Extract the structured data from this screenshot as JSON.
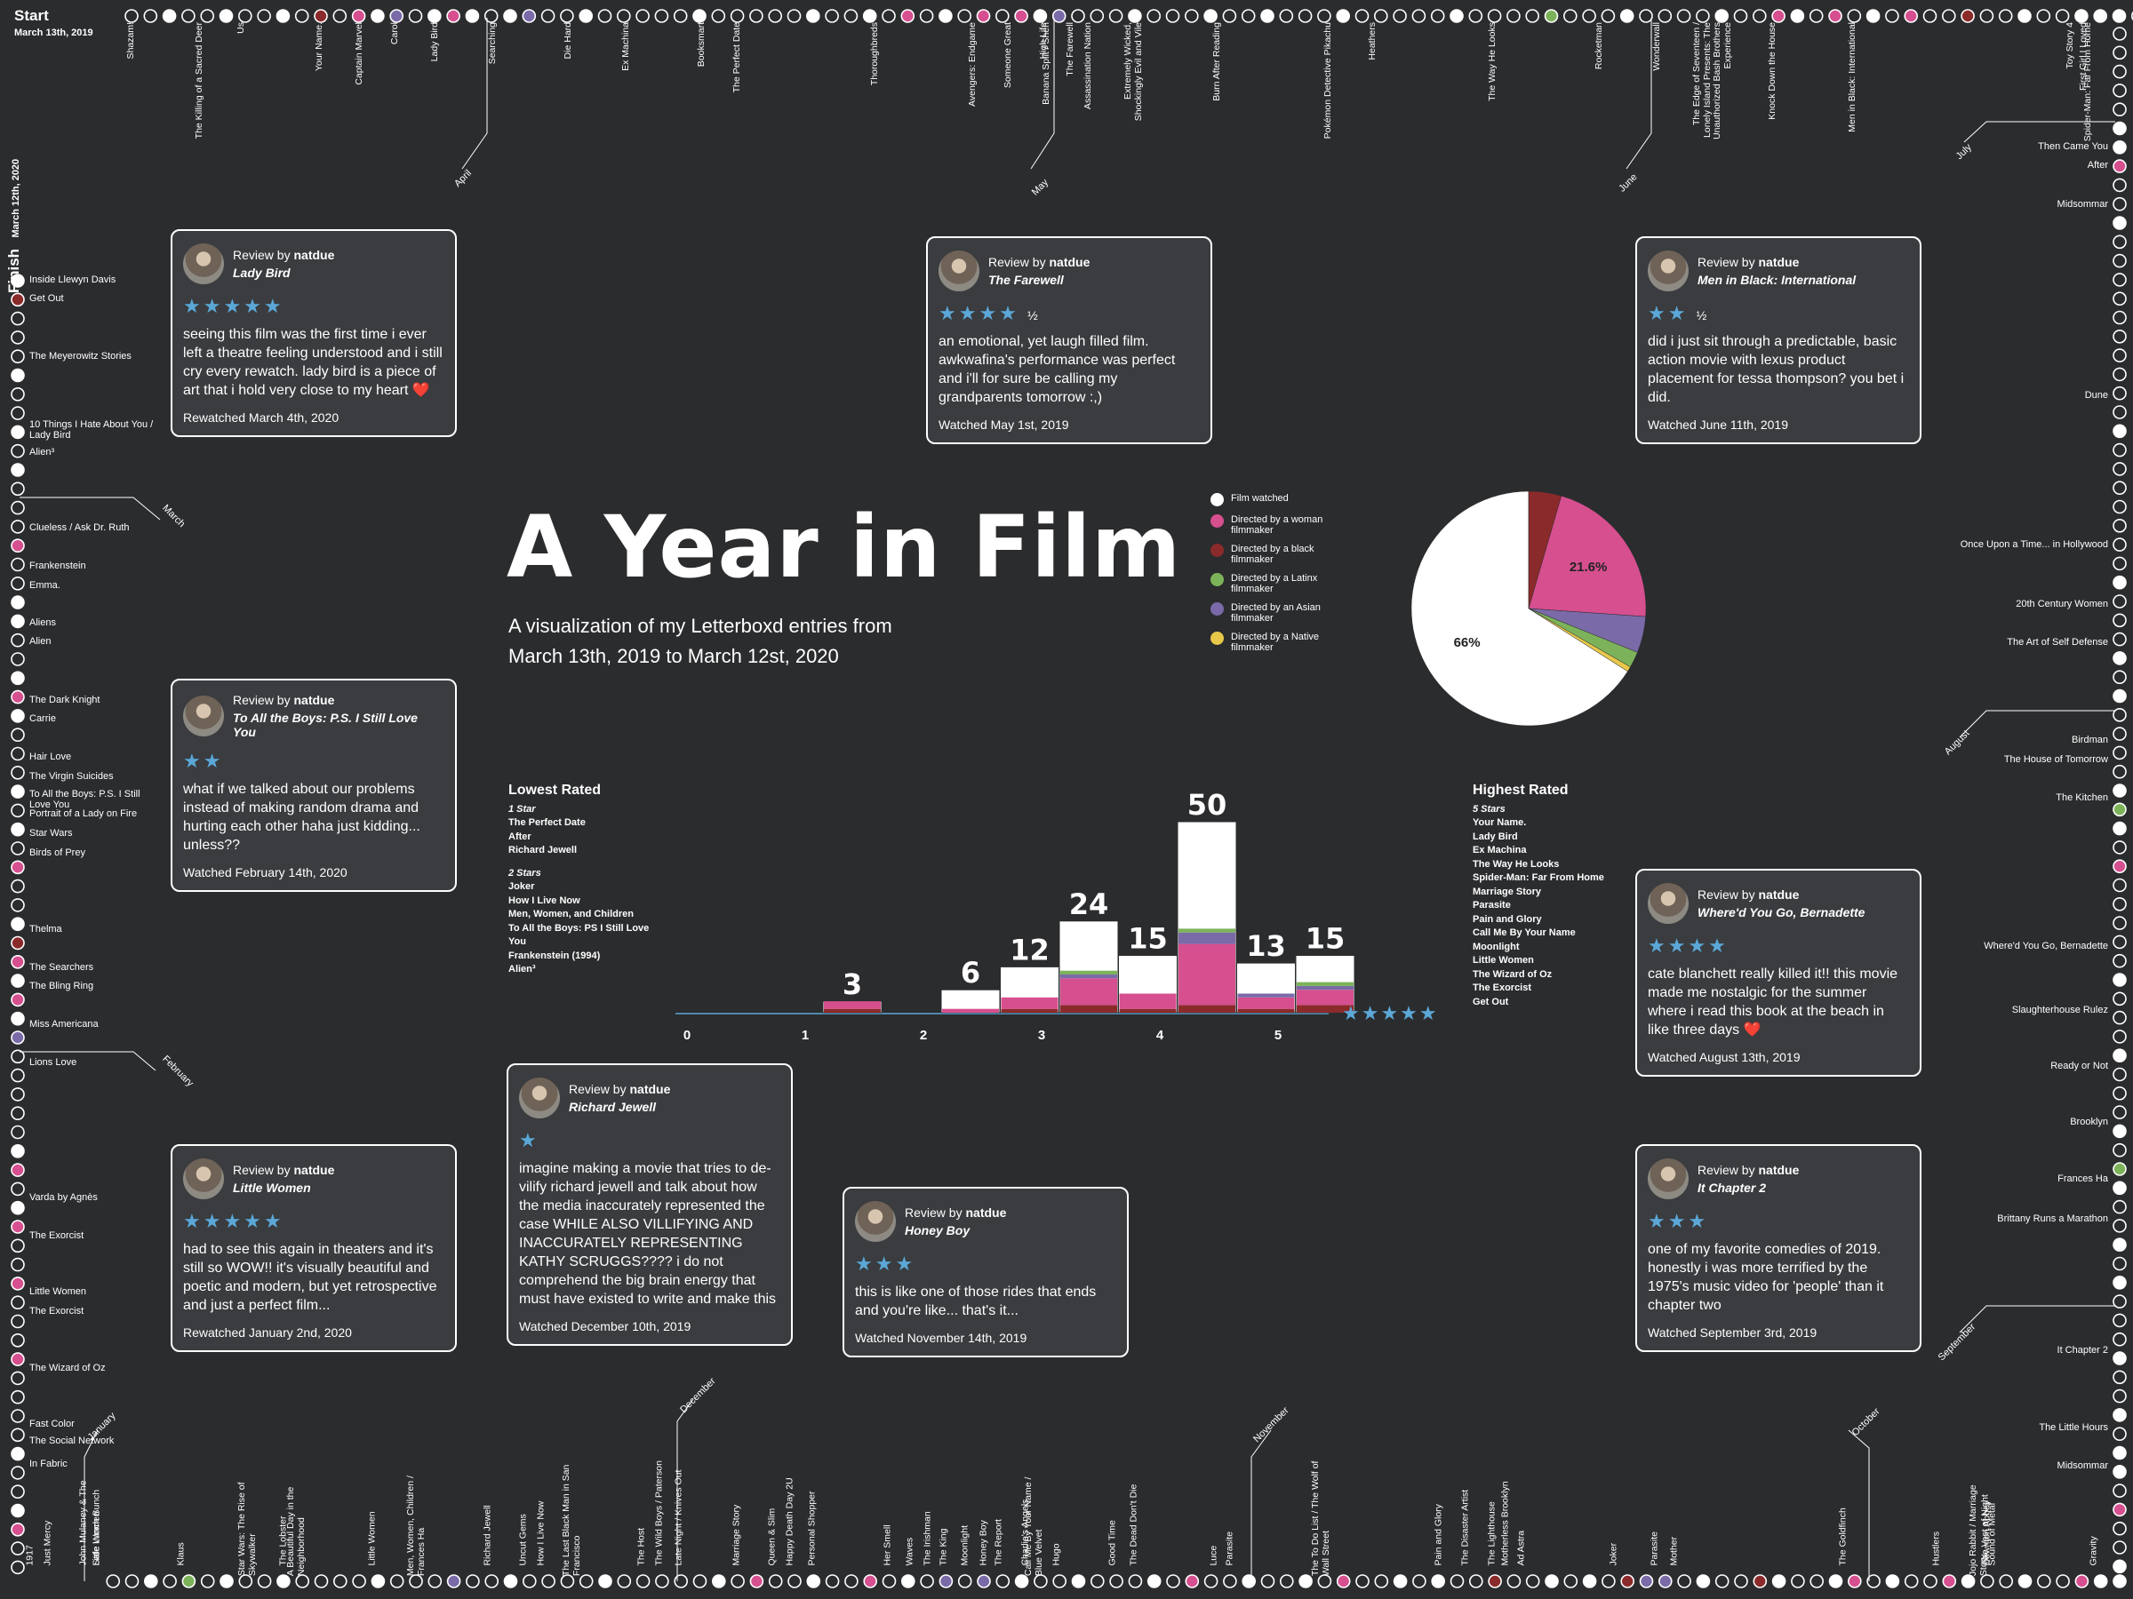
{
  "header": {
    "start_label": "Start",
    "start_date": "March 13th, 2019",
    "finish_label": "Finish",
    "finish_date": "March 12th, 2020"
  },
  "title": "A Year in Film",
  "subtitle_line1": "A visualization of my Letterboxd entries from",
  "subtitle_line2": "March 13th, 2019 to March 12st, 2020",
  "colors": {
    "watched": "#ffffff",
    "woman": "#d64f8f",
    "black": "#8b2a2a",
    "latinx": "#7cb35a",
    "asian": "#7b6aa8",
    "native": "#e8c84a",
    "background": "#2b2c2e",
    "star": "#5ba8d8"
  },
  "legend": [
    {
      "label": "Film watched",
      "color": "#ffffff"
    },
    {
      "label": "Directed by a woman filmmaker",
      "color": "#d64f8f"
    },
    {
      "label": "Directed by a black filmmaker",
      "color": "#8b2a2a"
    },
    {
      "label": "Directed by a Latinx filmmaker",
      "color": "#7cb35a"
    },
    {
      "label": "Directed by an Asian filmmaker",
      "color": "#7b6aa8"
    },
    {
      "label": "Directed by a Native filmmaker",
      "color": "#e8c84a"
    }
  ],
  "lowest_rated": {
    "heading": "Lowest Rated",
    "groups": [
      {
        "label": "1 Star",
        "films": [
          "The Perfect Date",
          "After",
          "Richard Jewell"
        ]
      },
      {
        "label": "2 Stars",
        "films": [
          "Joker",
          "How I Live Now",
          "Men, Women, and Children",
          "To All the Boys: PS I Still Love You",
          "Frankenstein (1994)",
          "Alien³"
        ]
      }
    ]
  },
  "highest_rated": {
    "heading": "Highest Rated",
    "groups": [
      {
        "label": "5 Stars",
        "films": [
          "Your Name.",
          "Lady Bird",
          "Ex Machina",
          "The Way He Looks",
          "Spider-Man: Far From Home",
          "Marriage Story",
          "Parasite",
          "Pain and Glory",
          "Call Me By Your Name",
          "Moonlight",
          "Little Women",
          "The Wizard of Oz",
          "The Exorcist",
          "Get Out"
        ]
      }
    ]
  },
  "reviews": [
    {
      "by": "Review by",
      "user": "natdue",
      "film": "Lady Bird",
      "stars": "★★★★★",
      "half": "",
      "text": "seeing this film was the first time i ever left a theatre feeling understood and i still cry every rewatch. lady bird is a piece of art that i hold very close to my heart ❤️",
      "date": "Rewatched March 4th, 2020"
    },
    {
      "by": "Review by",
      "user": "natdue",
      "film": "The Farewell",
      "stars": "★★★★",
      "half": "½",
      "text": "an emotional, yet laugh filled film. awkwafina's performance was perfect and i'll for sure be calling my grandparents tomorrow :,)",
      "date": "Watched May 1st, 2019"
    },
    {
      "by": "Review by",
      "user": "natdue",
      "film": "Men in Black: International",
      "stars": "★★",
      "half": "½",
      "text": "did i just sit through a predictable, basic action movie with lexus product placement for tessa thompson? you bet i did.",
      "date": "Watched June 11th, 2019"
    },
    {
      "by": "Review by",
      "user": "natdue",
      "film": "To All the Boys: P.S. I Still Love You",
      "stars": "★★",
      "half": "",
      "text": "what if we talked about our problems instead of making random drama and hurting each other haha just kidding... unless??",
      "date": "Watched February 14th, 2020"
    },
    {
      "by": "Review by",
      "user": "natdue",
      "film": "Where'd You Go, Bernadette",
      "stars": "★★★★",
      "half": "",
      "text": "cate blanchett really killed it!! this movie made me nostalgic for the summer where i read this book at the beach in like three days ❤️",
      "date": "Watched August 13th, 2019"
    },
    {
      "by": "Review by",
      "user": "natdue",
      "film": "Richard Jewell",
      "stars": "★",
      "half": "",
      "text": "imagine making a movie that tries to de-vilify richard jewell and talk about how the media inaccurately represented the case WHILE ALSO VILLIFYING AND INACCURATELY REPRESENTING KATHY SCRUGGS???? i do not comprehend the big brain energy that must have existed to write and make this",
      "date": "Watched December 10th, 2019"
    },
    {
      "by": "Review by",
      "user": "natdue",
      "film": "Little Women",
      "stars": "★★★★★",
      "half": "",
      "text": "had to see this again in theaters and it's still so WOW!! it's visually beautiful and poetic and modern, but yet retrospective and just a perfect film...",
      "date": "Rewatched January 2nd, 2020"
    },
    {
      "by": "Review by",
      "user": "natdue",
      "film": "Honey Boy",
      "stars": "★★★",
      "half": "",
      "text": "this is like one of those rides that ends and you're like... that's it...",
      "date": "Watched November 14th, 2019"
    },
    {
      "by": "Review by",
      "user": "natdue",
      "film": "It Chapter 2",
      "stars": "★★★",
      "half": "",
      "text": "one of my favorite comedies of 2019. honestly i was more terrified by the 1975's music video for 'people' than it chapter two",
      "date": "Watched September 3rd, 2019"
    }
  ],
  "chart_data": [
    {
      "type": "pie",
      "slices": [
        {
          "name": "Film watched",
          "value": 66,
          "label": "66%"
        },
        {
          "name": "Directed by a black filmmaker",
          "value": 4.5,
          "label": ""
        },
        {
          "name": "Directed by a woman filmmaker",
          "value": 21.6,
          "label": "21.6%"
        },
        {
          "name": "Directed by an Asian filmmaker",
          "value": 5.0,
          "label": ""
        },
        {
          "name": "Directed by a Latinx filmmaker",
          "value": 2.2,
          "label": ""
        },
        {
          "name": "Directed by a Native filmmaker",
          "value": 0.7,
          "label": ""
        }
      ]
    },
    {
      "type": "bar",
      "categories": [
        "0",
        "0.5",
        "1",
        "1.5",
        "2",
        "2.5",
        "3",
        "3.5",
        "4",
        "4.5",
        "5"
      ],
      "xticks": [
        "0",
        "1",
        "2",
        "3",
        "4",
        "5"
      ],
      "xticks_values": [
        0,
        1,
        2,
        3,
        4,
        5
      ],
      "totals": [
        0,
        0,
        3,
        0,
        6,
        12,
        24,
        15,
        50,
        13,
        15
      ],
      "series": [
        {
          "name": "Directed by a woman filmmaker",
          "values": [
            0,
            0,
            2,
            0,
            1,
            3,
            7,
            4,
            16,
            3,
            4
          ]
        },
        {
          "name": "Directed by a black filmmaker",
          "values": [
            0,
            0,
            1,
            0,
            0,
            1,
            2,
            1,
            2,
            1,
            2
          ]
        },
        {
          "name": "Directed by an Asian filmmaker",
          "values": [
            0,
            0,
            0,
            0,
            0,
            0,
            1,
            0,
            3,
            1,
            1
          ]
        },
        {
          "name": "Directed by a Latinx filmmaker",
          "values": [
            0,
            0,
            0,
            0,
            0,
            0,
            1,
            0,
            1,
            0,
            1
          ]
        }
      ],
      "star_scale": "★★★★★"
    }
  ],
  "timeline": {
    "top": [
      "Shazam!",
      "The Killing of a Sacred Deer",
      "Us",
      "Your Name.",
      "Captain Marvel",
      "Carol",
      "Lady Bird",
      "Searching",
      "Die Hard",
      "Ex Machina",
      "Booksmart",
      "The Perfect Date",
      "Thoroughbreds",
      "Avengers: Endgame",
      "Someone Great",
      "High Life",
      "Banana Split / Shen",
      "The Farewell",
      "Assassination Nation",
      "Extremely Wicked, Shockingly Evil and Vile",
      "Burn After Reading",
      "Pokémon Detective Pikachu",
      "Heathers",
      "The Way He Looks",
      "Rocketman",
      "Wonderwall",
      "The Edge of Seventeen / Lonely Island Presents: The Unauthorized Bash Brothers Experience",
      "Knock Down the House",
      "Men in Black: International",
      "Toy Story 4",
      "First Girl I Loved",
      "Spider-Man: Far From Home"
    ],
    "top_months": [
      "April",
      "May",
      "June",
      "July"
    ],
    "right": [
      "Then Came You",
      "After",
      "Midsommar",
      "Dune",
      "Once Upon a Time... in Hollywood",
      "20th Century Women",
      "The Art of Self Defense",
      "Birdman",
      "The House of Tomorrow",
      "The Kitchen",
      "Where'd You Go, Bernadette",
      "Slaughterhouse Rulez",
      "Ready or Not",
      "Brooklyn",
      "Frances Ha",
      "Brittany Runs a Marathon",
      "It Chapter 2",
      "The Little Hours",
      "Midsommar"
    ],
    "right_months": [
      "August",
      "September",
      "October"
    ],
    "bottom": [
      "Gravity",
      "Jojo Rabbit / Marriage Story",
      "Sound of Metal",
      "The Vast of Night",
      "Downton Abbey",
      "Hustlers",
      "The Goldfinch",
      "Parasite",
      "Mother",
      "Joker",
      "Ad Astra",
      "Motherless Brooklyn",
      "The Lighthouse",
      "The Disaster Artist",
      "Pain and Glory",
      "The To Do List / The Wolf of Wall Street",
      "Parasite",
      "Luce",
      "The Dead Don't Die",
      "Good Time",
      "Hugo",
      "Call Me By Your Name / Blue Velvet",
      "Charlie's Angels",
      "The Report",
      "Honey Boy",
      "Moonlight",
      "The King",
      "The Irishman",
      "Waves",
      "Her Smell",
      "Personal Shopper",
      "Happy Death Day 2U",
      "Queen & Slim",
      "Marriage Story",
      "Late Night / Knives Out",
      "The Wild Boys / Paterson",
      "The Host",
      "The Last Black Man in San Francisco",
      "How I Live Now",
      "Uncut Gems",
      "Richard Jewell",
      "Men, Women, Children / Frances Ha",
      "Little Women",
      "A Beautiful Day in the Neighborhood",
      "The Lobster",
      "Star Wars: The Rise of Skywalker",
      "Klaus",
      "Little Women",
      "Safe Lunch Bunch",
      "John Mulaney & The",
      "Just Mercy",
      "1917"
    ],
    "bottom_months": [
      "November",
      "December",
      "January"
    ],
    "left": [
      "Inside Llewyn Davis",
      "Get Out",
      "The Meyerowitz Stories",
      "10 Things I Hate About You / Lady Bird",
      "Alien³",
      "Clueless / Ask Dr. Ruth",
      "Frankenstein",
      "Emma.",
      "Aliens",
      "Alien",
      "The Dark Knight",
      "Carrie",
      "Hair Love",
      "The Virgin Suicides",
      "To All the Boys: P.S. I Still Love You",
      "Portrait of a Lady on Fire",
      "Star Wars",
      "Birds of Prey",
      "Thelma",
      "The Searchers",
      "The Bling Ring",
      "Miss Americana",
      "Lions Love",
      "Varda by Agnès",
      "The Exorcist",
      "Little Women",
      "The Exorcist",
      "The Wizard of Oz",
      "Fast Color",
      "The Social Network",
      "In Fabric"
    ],
    "left_months": [
      "March",
      "February"
    ]
  }
}
